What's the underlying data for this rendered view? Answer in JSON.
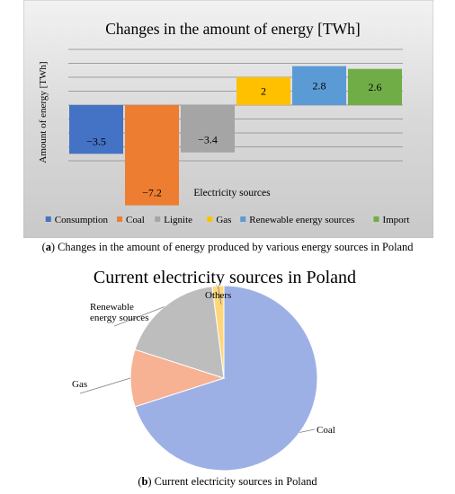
{
  "figure_a": {
    "caption_label": "(a)",
    "caption_label_letter": "a",
    "caption_text": "Changes in the amount of energy produced by various energy sources in Poland"
  },
  "figure_b": {
    "caption_label_letter": "b",
    "caption_text": "Current electricity sources in Poland"
  },
  "chart_data": [
    {
      "type": "bar",
      "title": "Changes in the amount of energy [TWh]",
      "xlabel": "Electricity sources",
      "ylabel": "Amount of energy [TWh]",
      "categories": [
        "Consumption",
        "Coal",
        "Lignite",
        "Gas",
        "Renewable energy sources",
        "Import"
      ],
      "values": [
        -3.5,
        -7.2,
        -3.4,
        2,
        2.8,
        2.6
      ],
      "data_labels": [
        "−3.5",
        "−7.2",
        "−3.4",
        "2",
        "2.8",
        "2.6"
      ],
      "colors": [
        "#4472C4",
        "#ED7D31",
        "#A5A5A5",
        "#FFC000",
        "#5B9BD5",
        "#70AD47"
      ],
      "ylim": [
        -8,
        4
      ],
      "grid": true,
      "legend_position": "bottom",
      "background": "#D9D9D9"
    },
    {
      "type": "pie",
      "title": "Current electricity sources in Poland",
      "categories": [
        "Coal",
        "Gas",
        "Renewable energy sources",
        "Others"
      ],
      "values": [
        70,
        10,
        18,
        2
      ],
      "colors": [
        "#9DB0E6",
        "#F7B193",
        "#BDBDBD",
        "#FFD77A"
      ],
      "labels": [
        "Coal",
        "Gas",
        "Renewable\nenergy sources",
        "Others"
      ]
    }
  ]
}
